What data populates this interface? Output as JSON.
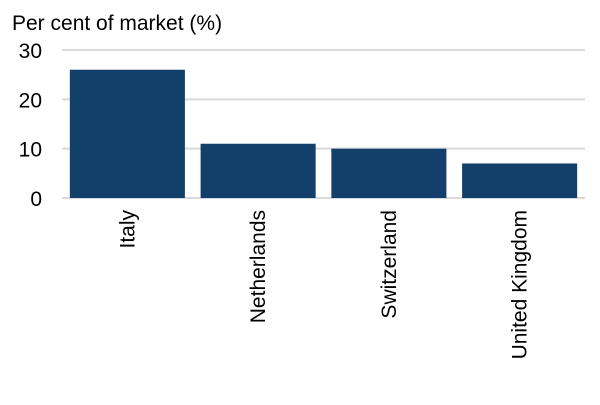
{
  "chart_data": {
    "type": "bar",
    "ylabel": "Per cent of market (%)",
    "categories": [
      "Italy",
      "Netherlands",
      "Switzerland",
      "United Kingdom"
    ],
    "values": [
      26,
      11,
      10,
      7
    ],
    "ylim": [
      0,
      30
    ],
    "yticks": [
      "0",
      "10",
      "20",
      "30"
    ],
    "grid": true,
    "bar_color": "#13406b",
    "grid_color": "#d9d9d9"
  }
}
